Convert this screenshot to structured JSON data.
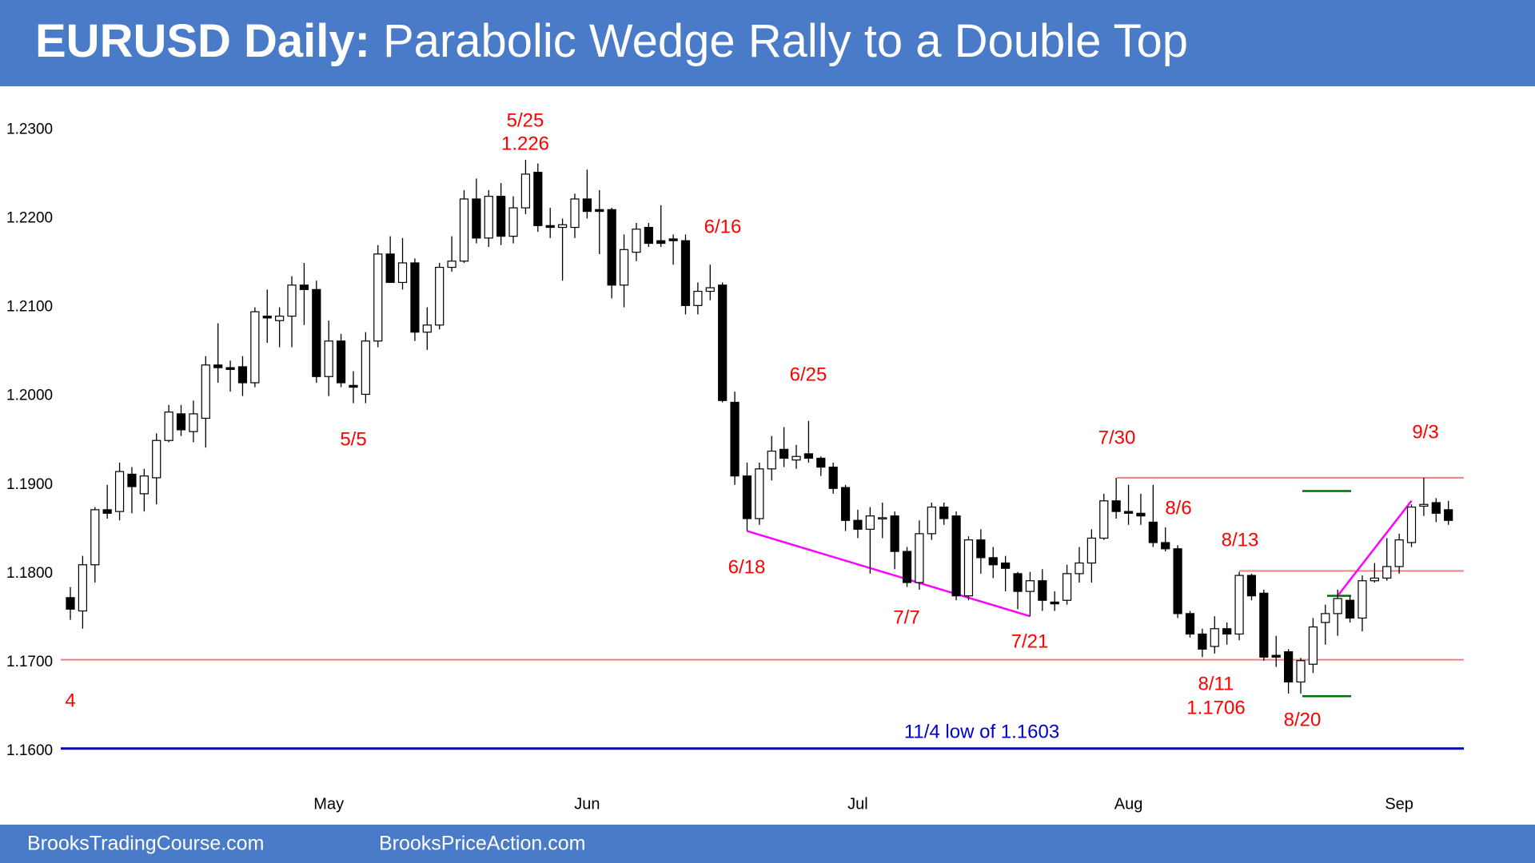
{
  "chart_data": {
    "type": "candlestick",
    "title_lead": "EURUSD Daily:",
    "title": "Parabolic Wedge Rally to a Double Top",
    "categories": [
      null,
      null,
      null,
      null,
      null,
      null,
      null,
      null,
      null,
      null,
      null,
      null,
      null,
      null,
      null,
      null,
      null,
      null,
      null,
      null,
      null,
      "May",
      null,
      null,
      null,
      null,
      null,
      null,
      null,
      null,
      null,
      null,
      null,
      null,
      null,
      null,
      null,
      null,
      null,
      null,
      null,
      null,
      "Jun",
      null,
      null,
      null,
      null,
      null,
      null,
      null,
      null,
      null,
      null,
      null,
      null,
      null,
      null,
      null,
      null,
      null,
      null,
      null,
      null,
      null,
      "Jul",
      null,
      null,
      null,
      null,
      null,
      null,
      null,
      null,
      null,
      null,
      null,
      null,
      null,
      null,
      null,
      null,
      null,
      null,
      null,
      null,
      null,
      "Aug",
      null,
      null,
      null,
      null,
      null,
      null,
      null,
      null,
      null,
      null,
      null,
      null,
      null,
      null,
      null,
      null,
      null,
      null,
      null,
      null,
      null,
      "Sep",
      null,
      null,
      null,
      null
    ],
    "open": [
      1.1773,
      1.1758,
      1.181,
      1.1872,
      1.187,
      1.1912,
      1.189,
      1.1908,
      1.195,
      1.198,
      1.196,
      1.1975,
      1.2035,
      1.2032,
      1.2033,
      1.2015,
      1.209,
      1.2085,
      1.209,
      1.2125,
      1.212,
      1.2022,
      1.2062,
      1.2012,
      1.2002,
      1.2062,
      1.216,
      1.2128,
      1.215,
      1.2072,
      1.208,
      1.2145,
      1.2152,
      1.2222,
      1.2178,
      1.2225,
      1.218,
      1.2212,
      1.2252,
      1.2192,
      1.219,
      1.219,
      1.2222,
      1.221,
      1.221,
      1.2125,
      1.2162,
      1.219,
      1.2175,
      1.2177,
      1.2175,
      1.2102,
      1.2118,
      1.2125,
      1.1993,
      1.191,
      1.1862,
      1.1918,
      1.194,
      1.1928,
      1.1935,
      1.193,
      1.192,
      1.1897,
      1.186,
      1.185,
      1.1862,
      1.1865,
      1.1825,
      1.179,
      1.1845,
      1.1875,
      1.1865,
      1.1775,
      1.1838,
      1.1818,
      1.1812,
      1.18,
      1.178,
      1.1792,
      1.1768,
      1.177,
      1.18,
      1.1812,
      1.184,
      1.1882,
      1.187,
      1.1868,
      1.1858,
      1.1835,
      1.1828,
      1.1755,
      1.1732,
      1.1718,
      1.1738,
      1.1732,
      1.1798,
      1.1778,
      1.1708,
      1.1712,
      1.1678,
      1.1698,
      1.1745,
      1.1755,
      1.177,
      1.175,
      1.1792,
      1.1795,
      1.1808,
      1.1835,
      1.1876,
      1.188,
      1.1872
    ],
    "high": [
      1.1785,
      1.182,
      1.1875,
      1.19,
      1.1925,
      1.192,
      1.1918,
      1.1958,
      1.199,
      1.199,
      1.1995,
      1.2045,
      1.2082,
      1.204,
      1.2045,
      1.21,
      1.212,
      1.21,
      1.2135,
      1.215,
      1.213,
      1.2085,
      1.207,
      1.2028,
      1.2072,
      1.217,
      1.218,
      1.2178,
      1.2155,
      1.21,
      1.215,
      1.218,
      1.2232,
      1.2245,
      1.2232,
      1.224,
      1.2225,
      1.2266,
      1.2262,
      1.2212,
      1.22,
      1.2228,
      1.2255,
      1.2232,
      1.2212,
      1.2182,
      1.2195,
      1.2195,
      1.2215,
      1.2182,
      1.2182,
      1.2128,
      1.2148,
      1.2128,
      1.2005,
      1.1925,
      1.1925,
      1.1955,
      1.1965,
      1.1945,
      1.1972,
      1.1932,
      1.1925,
      1.19,
      1.1872,
      1.1875,
      1.188,
      1.187,
      1.183,
      1.186,
      1.188,
      1.188,
      1.187,
      1.1842,
      1.185,
      1.183,
      1.182,
      1.1802,
      1.1802,
      1.1805,
      1.178,
      1.181,
      1.183,
      1.185,
      1.189,
      1.1908,
      1.19,
      1.189,
      1.19,
      1.1852,
      1.1832,
      1.1758,
      1.1738,
      1.1752,
      1.1745,
      1.1802,
      1.18,
      1.1782,
      1.173,
      1.1715,
      1.1705,
      1.175,
      1.1765,
      1.1782,
      1.1775,
      1.1798,
      1.1812,
      1.184,
      1.1845,
      1.1878,
      1.1908,
      1.1885,
      1.1882
    ],
    "low": [
      1.1748,
      1.1738,
      1.179,
      1.1862,
      1.186,
      1.1868,
      1.187,
      1.1878,
      1.1948,
      1.1955,
      1.1948,
      1.1942,
      1.2015,
      1.2005,
      1.2,
      1.201,
      1.206,
      1.2055,
      1.2055,
      1.208,
      1.2015,
      1.2,
      1.201,
      1.1992,
      1.1992,
      1.2055,
      1.2128,
      1.212,
      1.2062,
      1.2052,
      1.2075,
      1.214,
      1.215,
      1.2172,
      1.2168,
      1.217,
      1.2172,
      1.2205,
      1.2185,
      1.2178,
      1.213,
      1.2178,
      1.22,
      1.216,
      1.211,
      1.21,
      1.2152,
      1.2168,
      1.2168,
      1.2148,
      1.2092,
      1.2092,
      1.2108,
      1.1993,
      1.19,
      1.1848,
      1.1855,
      1.1905,
      1.192,
      1.1918,
      1.1925,
      1.191,
      1.189,
      1.1848,
      1.184,
      1.18,
      1.184,
      1.1805,
      1.1785,
      1.1782,
      1.1838,
      1.1855,
      1.177,
      1.177,
      1.18,
      1.1795,
      1.178,
      1.176,
      1.1752,
      1.1758,
      1.1758,
      1.1765,
      1.179,
      1.179,
      1.1838,
      1.1862,
      1.1855,
      1.1855,
      1.183,
      1.1825,
      1.175,
      1.1728,
      1.1706,
      1.171,
      1.172,
      1.1725,
      1.177,
      1.1702,
      1.1695,
      1.1665,
      1.1665,
      1.1688,
      1.172,
      1.173,
      1.1745,
      1.1735,
      1.179,
      1.1792,
      1.18,
      1.183,
      1.1865,
      1.1858,
      1.1855
    ],
    "close": [
      1.176,
      1.181,
      1.1872,
      1.1868,
      1.1915,
      1.1898,
      1.191,
      1.195,
      1.1982,
      1.1962,
      1.198,
      1.2035,
      1.2032,
      1.203,
      1.2015,
      1.2095,
      1.2088,
      1.209,
      1.2125,
      1.212,
      1.2022,
      1.2062,
      1.2015,
      1.201,
      1.2062,
      1.216,
      1.2128,
      1.215,
      1.2072,
      1.208,
      1.2145,
      1.2152,
      1.2222,
      1.2178,
      1.2225,
      1.218,
      1.2212,
      1.225,
      1.2192,
      1.219,
      1.2193,
      1.2222,
      1.2208,
      1.2208,
      1.2125,
      1.2165,
      1.2188,
      1.2172,
      1.2172,
      1.2175,
      1.2102,
      1.2118,
      1.2122,
      1.1995,
      1.191,
      1.1862,
      1.1918,
      1.1938,
      1.193,
      1.1932,
      1.193,
      1.192,
      1.1896,
      1.186,
      1.185,
      1.1865,
      1.1863,
      1.1825,
      1.179,
      1.1845,
      1.1875,
      1.1862,
      1.1775,
      1.1838,
      1.1818,
      1.181,
      1.1806,
      1.178,
      1.1792,
      1.177,
      1.1766,
      1.18,
      1.1812,
      1.184,
      1.1882,
      1.187,
      1.1868,
      1.1865,
      1.1835,
      1.1828,
      1.1755,
      1.1732,
      1.1715,
      1.1738,
      1.1732,
      1.1798,
      1.1775,
      1.1706,
      1.1706,
      1.1678,
      1.1702,
      1.174,
      1.1755,
      1.1772,
      1.175,
      1.1792,
      1.1795,
      1.1808,
      1.1838,
      1.1875,
      1.1878,
      1.1868,
      1.186
    ],
    "up_color": "#ffffff",
    "down_color": "#000000",
    "ylim": [
      1.1565,
      1.2348
    ],
    "yticks": [
      {
        "value": 1.23,
        "label": "1.2300"
      },
      {
        "value": 1.22,
        "label": "1.2200"
      },
      {
        "value": 1.21,
        "label": "1.2100"
      },
      {
        "value": 1.2,
        "label": "1.2000"
      },
      {
        "value": 1.19,
        "label": "1.1900"
      },
      {
        "value": 1.18,
        "label": "1.1800"
      },
      {
        "value": 1.17,
        "label": "1.1700"
      },
      {
        "value": 1.16,
        "label": "1.1600"
      }
    ],
    "levels": [
      {
        "value": 1.1908,
        "color": "#f08080"
      },
      {
        "value": 1.1803,
        "color": "#f08080"
      },
      {
        "value": 1.1703,
        "color": "#f08080"
      },
      {
        "value": 1.1603,
        "color": "#0000cc"
      },
      {
        "value": 1.1893,
        "color": "#007000"
      },
      {
        "value": 1.1775,
        "color": "#007000"
      },
      {
        "value": 1.1662,
        "color": "#007000"
      }
    ],
    "trendlines": [
      {
        "color": "#ff00ff",
        "values": [
          1.1848,
          1.1752
        ]
      },
      {
        "color": "#ff00ff",
        "values": [
          1.1775,
          1.1882
        ]
      }
    ],
    "annotations": [
      {
        "text": "5/25",
        "color": "#ff0000"
      },
      {
        "text": "1.226",
        "color": "#ff0000"
      },
      {
        "text": "6/16",
        "color": "#ff0000"
      },
      {
        "text": "5/5",
        "color": "#ff0000"
      },
      {
        "text": "6/25",
        "color": "#ff0000"
      },
      {
        "text": "7/30",
        "color": "#ff0000"
      },
      {
        "text": "9/3",
        "color": "#ff0000"
      },
      {
        "text": "8/6",
        "color": "#ff0000"
      },
      {
        "text": "6/18",
        "color": "#ff0000"
      },
      {
        "text": "8/13",
        "color": "#ff0000"
      },
      {
        "text": "7/7",
        "color": "#ff0000"
      },
      {
        "text": "7/21",
        "color": "#ff0000"
      },
      {
        "text": "8/11",
        "color": "#ff0000"
      },
      {
        "text": "1.1706",
        "color": "#ff0000"
      },
      {
        "text": "8/20",
        "color": "#ff0000"
      },
      {
        "text": "4",
        "color": "#ff0000"
      },
      {
        "text": "11/4 low of 1.1603",
        "color": "#0000cc"
      }
    ]
  },
  "footer": {
    "left": "BrooksTradingCourse.com",
    "right": "BrooksPriceAction.com"
  }
}
